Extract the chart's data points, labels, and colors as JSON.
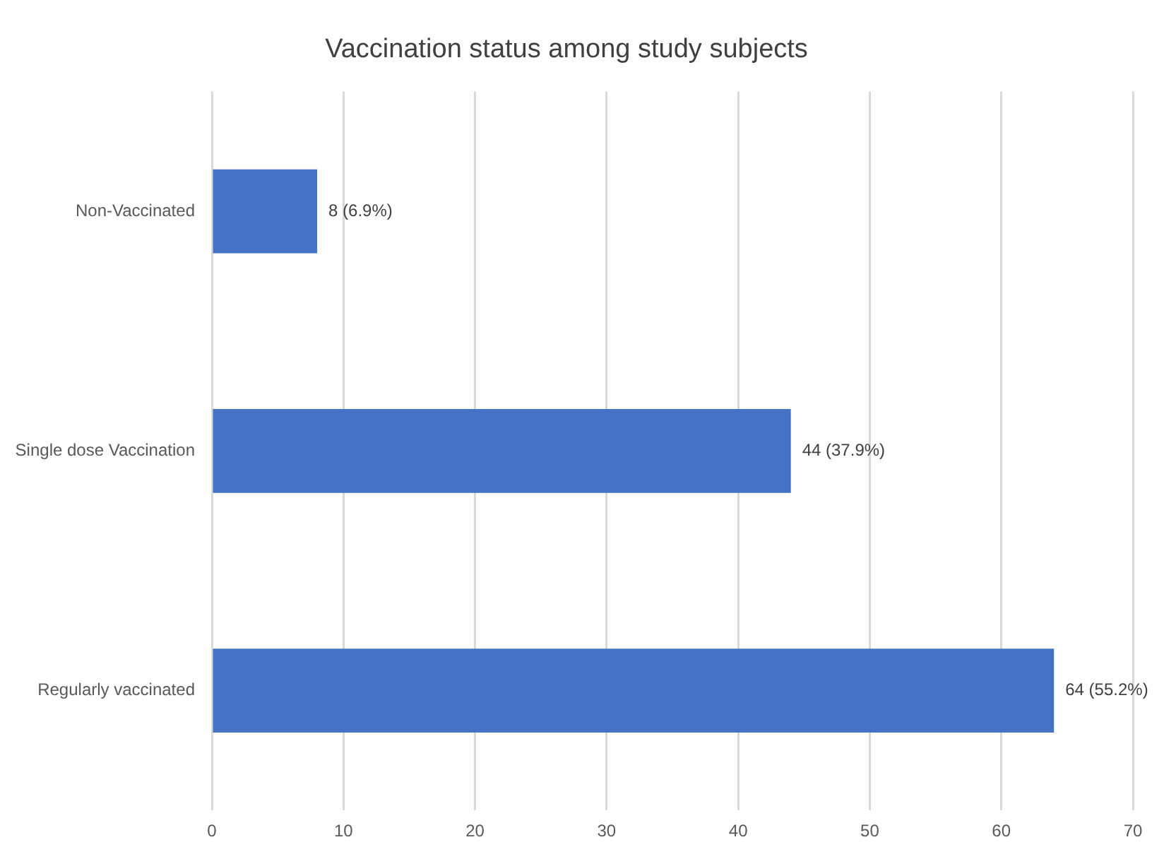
{
  "chart_data": {
    "type": "bar",
    "orientation": "horizontal",
    "title": "Vaccination status among study subjects",
    "categories": [
      "Non-Vaccinated",
      "Single dose Vaccination",
      "Regularly vaccinated"
    ],
    "values": [
      8,
      44,
      64
    ],
    "color": "#4472c4",
    "value_labels": [
      "8 (6.9%)",
      "44 (37.9%)",
      "64 (55.2%)"
    ],
    "xlim": [
      0,
      70
    ],
    "xticks": [
      0,
      10,
      20,
      30,
      40,
      50,
      60,
      70
    ],
    "grid": "x",
    "legend": false
  }
}
